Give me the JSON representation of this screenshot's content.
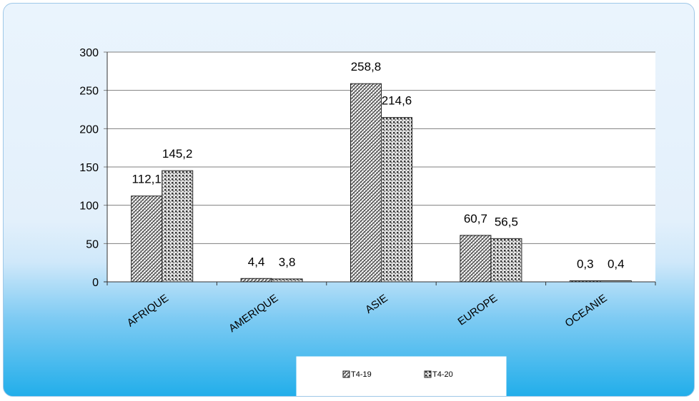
{
  "chart_data": {
    "type": "bar",
    "categories": [
      "AFRIQUE",
      "AMERIQUE",
      "ASIE",
      "EUROPE",
      "OCEANIE"
    ],
    "series": [
      {
        "name": "T4-19",
        "values": [
          112.1,
          4.4,
          258.8,
          60.7,
          0.3
        ],
        "labels": [
          "112,1",
          "4,4",
          "258,8",
          "60,7",
          "0,3"
        ],
        "pattern": "diagonal-hatch"
      },
      {
        "name": "T4-20",
        "values": [
          145.2,
          3.8,
          214.6,
          56.5,
          0.4
        ],
        "labels": [
          "145,2",
          "3,8",
          "214,6",
          "56,5",
          "0,4"
        ],
        "pattern": "dotted-grid"
      }
    ],
    "title": "",
    "xlabel": "",
    "ylabel": "",
    "ylim": [
      0,
      300
    ],
    "yticks": [
      0,
      50,
      100,
      150,
      200,
      250,
      300
    ],
    "grid": true,
    "legend": "bottom-center",
    "colors": {
      "bar_fill": "#ffffff",
      "bar_pattern": "#3a3a3a",
      "plot_background": "#ffffff",
      "gridline": "#7f7f7f"
    }
  }
}
